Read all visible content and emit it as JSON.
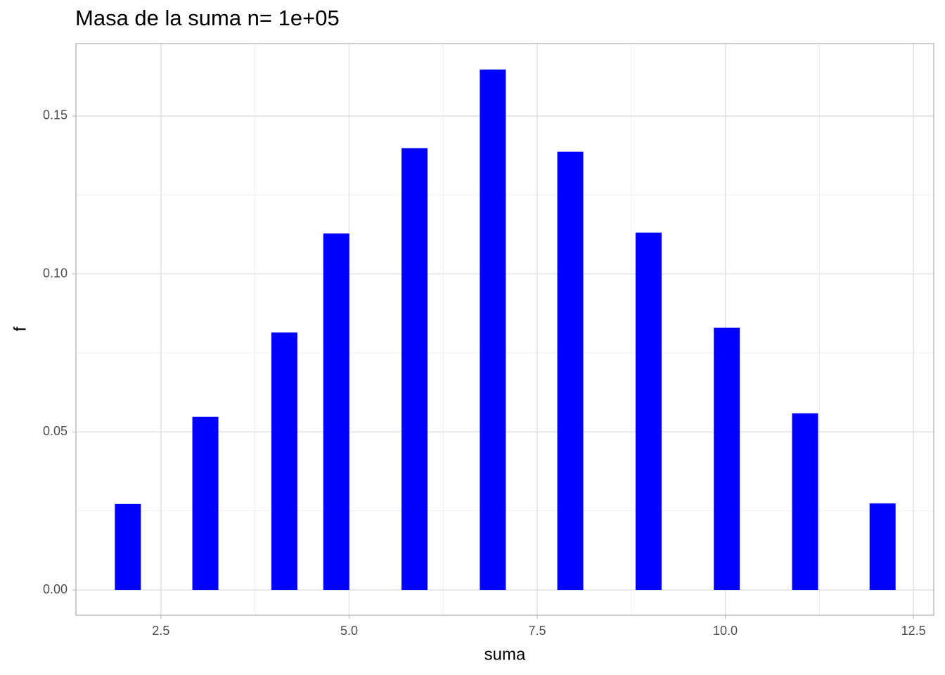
{
  "chart_data": {
    "type": "bar",
    "title": "Masa de la suma n= 1e+05",
    "x_label": "suma",
    "y_label": "f",
    "x": [
      2.06,
      3.09,
      4.14,
      4.83,
      5.87,
      6.91,
      7.94,
      8.98,
      10.02,
      11.06,
      12.09
    ],
    "values": [
      0.0272,
      0.0548,
      0.0815,
      0.1128,
      0.1398,
      0.1647,
      0.1387,
      0.1131,
      0.083,
      0.0559,
      0.0274
    ],
    "color": "#0000ff",
    "xlim": [
      1.37,
      12.77
    ],
    "xticks": [
      {
        "value": 2.5,
        "label": "2.5"
      },
      {
        "value": 5,
        "label": "5.0"
      },
      {
        "value": 7.5,
        "label": "7.5"
      },
      {
        "value": 10,
        "label": "10.0"
      },
      {
        "value": 12.5,
        "label": "12.5"
      }
    ],
    "ylim": [
      -0.008,
      0.1729
    ],
    "yticks": [
      {
        "value": 0,
        "label": "0.00"
      },
      0.05,
      {
        "value": 0.1,
        "label": "0.10"
      },
      0.15
    ],
    "grid": true,
    "minor_grid": true
  }
}
